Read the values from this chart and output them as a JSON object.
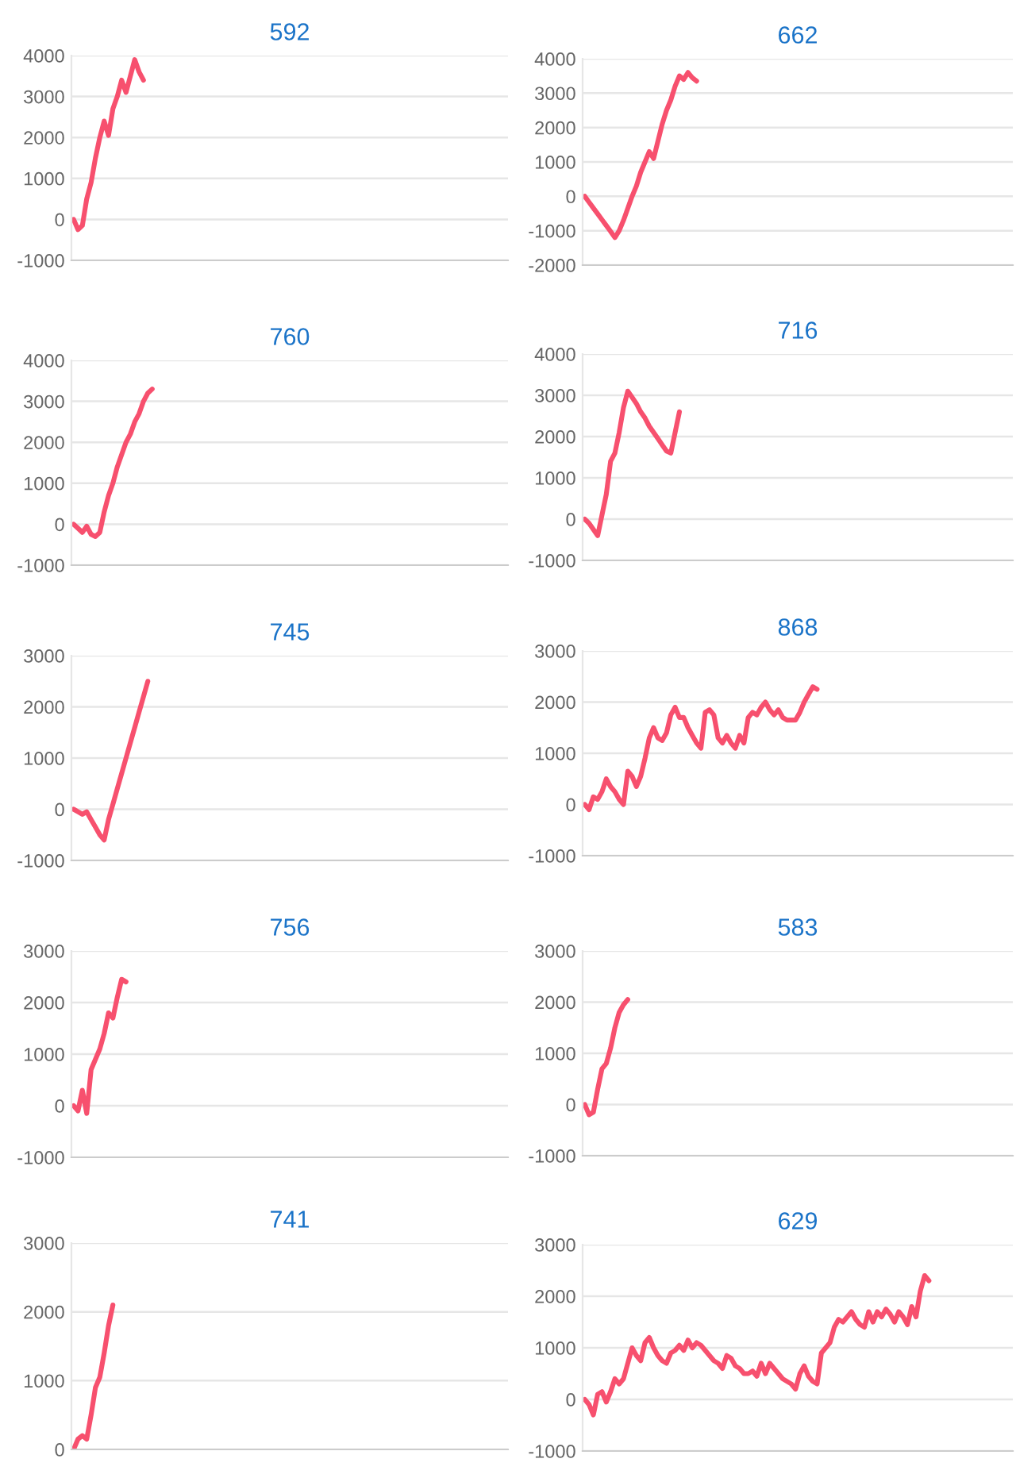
{
  "chart_data": [
    {
      "type": "line",
      "title": "592",
      "categories": [
        null,
        null,
        null,
        null,
        null,
        null,
        null,
        null,
        null,
        null,
        null,
        null,
        null,
        null,
        null,
        null,
        null,
        null,
        null,
        null,
        null,
        null,
        null,
        null,
        null,
        null,
        null,
        null,
        null,
        null,
        null,
        null,
        null,
        null,
        null,
        null,
        null,
        null,
        null,
        null,
        null,
        null,
        null,
        null,
        null,
        null,
        null,
        null,
        null,
        null,
        null,
        null,
        null,
        null,
        null,
        null,
        null,
        null,
        null,
        null,
        null,
        null,
        null,
        null,
        null,
        null,
        null,
        null,
        null,
        null,
        null,
        null,
        null,
        null,
        null,
        null,
        null,
        null,
        null,
        null,
        null,
        null,
        null,
        null,
        null,
        null,
        null,
        null,
        null,
        null,
        null,
        null,
        null,
        null,
        null,
        null,
        null,
        null,
        null,
        null
      ],
      "series": [
        {
          "color": "#f7506e",
          "values": [
            0,
            -250,
            -150,
            500,
            900,
            1500,
            2000,
            2400,
            2050,
            2700,
            3000,
            3400,
            3100,
            3500,
            3900,
            3600,
            3400,
            null,
            null,
            null,
            null,
            null,
            null,
            null,
            null,
            null,
            null,
            null,
            null,
            null,
            null,
            null,
            null,
            null,
            null,
            null,
            null,
            null,
            null,
            null,
            null,
            null,
            null,
            null,
            null,
            null,
            null,
            null,
            null,
            null,
            null,
            null,
            null,
            null,
            null,
            null,
            null,
            null,
            null,
            null,
            null,
            null,
            null,
            null,
            null,
            null,
            null,
            null,
            null,
            null,
            null,
            null,
            null,
            null,
            null,
            null,
            null,
            null,
            null,
            null,
            null,
            null,
            null,
            null,
            null,
            null,
            null,
            null,
            null,
            null,
            null,
            null,
            null,
            null,
            null,
            null,
            null,
            null,
            null,
            null
          ]
        }
      ],
      "ylim": [
        -1000,
        4000
      ],
      "yticks": [
        -1000,
        0,
        1000,
        2000,
        3000,
        4000
      ],
      "grid": "y",
      "tick_labels": "y",
      "marker": "none",
      "line_style": "solid"
    },
    {
      "type": "line",
      "title": "662",
      "categories": [
        null,
        null,
        null,
        null,
        null,
        null,
        null,
        null,
        null,
        null,
        null,
        null,
        null,
        null,
        null,
        null,
        null,
        null,
        null,
        null,
        null,
        null,
        null,
        null,
        null,
        null,
        null,
        null,
        null,
        null,
        null,
        null,
        null,
        null,
        null,
        null,
        null,
        null,
        null,
        null,
        null,
        null,
        null,
        null,
        null,
        null,
        null,
        null,
        null,
        null,
        null,
        null,
        null,
        null,
        null,
        null,
        null,
        null,
        null,
        null,
        null,
        null,
        null,
        null,
        null,
        null,
        null,
        null,
        null,
        null,
        null,
        null,
        null,
        null,
        null,
        null,
        null,
        null,
        null,
        null,
        null,
        null,
        null,
        null,
        null,
        null,
        null,
        null,
        null,
        null,
        null,
        null,
        null,
        null,
        null,
        null,
        null,
        null,
        null,
        null
      ],
      "series": [
        {
          "color": "#f7506e",
          "values": [
            0,
            -170,
            -340,
            -510,
            -680,
            -850,
            -1020,
            -1200,
            -1000,
            -700,
            -350,
            0,
            300,
            700,
            1000,
            1300,
            1100,
            1600,
            2100,
            2500,
            2800,
            3200,
            3500,
            3400,
            3600,
            3450,
            3350,
            null,
            null,
            null,
            null,
            null,
            null,
            null,
            null,
            null,
            null,
            null,
            null,
            null,
            null,
            null,
            null,
            null,
            null,
            null,
            null,
            null,
            null,
            null,
            null,
            null,
            null,
            null,
            null,
            null,
            null,
            null,
            null,
            null,
            null,
            null,
            null,
            null,
            null,
            null,
            null,
            null,
            null,
            null,
            null,
            null,
            null,
            null,
            null,
            null,
            null,
            null,
            null,
            null,
            null,
            null,
            null,
            null,
            null,
            null,
            null,
            null,
            null,
            null,
            null,
            null,
            null,
            null,
            null,
            null,
            null,
            null,
            null,
            null
          ]
        }
      ],
      "ylim": [
        -2000,
        4000
      ],
      "yticks": [
        -2000,
        -1000,
        0,
        1000,
        2000,
        3000,
        4000
      ],
      "grid": "y",
      "tick_labels": "y",
      "marker": "none",
      "line_style": "solid"
    },
    {
      "type": "line",
      "title": "760",
      "categories": [
        null,
        null,
        null,
        null,
        null,
        null,
        null,
        null,
        null,
        null,
        null,
        null,
        null,
        null,
        null,
        null,
        null,
        null,
        null,
        null,
        null,
        null,
        null,
        null,
        null,
        null,
        null,
        null,
        null,
        null,
        null,
        null,
        null,
        null,
        null,
        null,
        null,
        null,
        null,
        null,
        null,
        null,
        null,
        null,
        null,
        null,
        null,
        null,
        null,
        null,
        null,
        null,
        null,
        null,
        null,
        null,
        null,
        null,
        null,
        null,
        null,
        null,
        null,
        null,
        null,
        null,
        null,
        null,
        null,
        null,
        null,
        null,
        null,
        null,
        null,
        null,
        null,
        null,
        null,
        null,
        null,
        null,
        null,
        null,
        null,
        null,
        null,
        null,
        null,
        null,
        null,
        null,
        null,
        null,
        null,
        null,
        null,
        null,
        null,
        null
      ],
      "series": [
        {
          "color": "#f7506e",
          "values": [
            0,
            -100,
            -200,
            -50,
            -250,
            -300,
            -200,
            300,
            700,
            1000,
            1400,
            1700,
            2000,
            2200,
            2500,
            2700,
            3000,
            3200,
            3300,
            null,
            null,
            null,
            null,
            null,
            null,
            null,
            null,
            null,
            null,
            null,
            null,
            null,
            null,
            null,
            null,
            null,
            null,
            null,
            null,
            null,
            null,
            null,
            null,
            null,
            null,
            null,
            null,
            null,
            null,
            null,
            null,
            null,
            null,
            null,
            null,
            null,
            null,
            null,
            null,
            null,
            null,
            null,
            null,
            null,
            null,
            null,
            null,
            null,
            null,
            null,
            null,
            null,
            null,
            null,
            null,
            null,
            null,
            null,
            null,
            null,
            null,
            null,
            null,
            null,
            null,
            null,
            null,
            null,
            null,
            null,
            null,
            null,
            null,
            null,
            null,
            null,
            null,
            null,
            null,
            null
          ]
        }
      ],
      "ylim": [
        -1000,
        4000
      ],
      "yticks": [
        -1000,
        0,
        1000,
        2000,
        3000,
        4000
      ],
      "grid": "y",
      "tick_labels": "y",
      "marker": "none",
      "line_style": "solid"
    },
    {
      "type": "line",
      "title": "716",
      "categories": [
        null,
        null,
        null,
        null,
        null,
        null,
        null,
        null,
        null,
        null,
        null,
        null,
        null,
        null,
        null,
        null,
        null,
        null,
        null,
        null,
        null,
        null,
        null,
        null,
        null,
        null,
        null,
        null,
        null,
        null,
        null,
        null,
        null,
        null,
        null,
        null,
        null,
        null,
        null,
        null,
        null,
        null,
        null,
        null,
        null,
        null,
        null,
        null,
        null,
        null,
        null,
        null,
        null,
        null,
        null,
        null,
        null,
        null,
        null,
        null,
        null,
        null,
        null,
        null,
        null,
        null,
        null,
        null,
        null,
        null,
        null,
        null,
        null,
        null,
        null,
        null,
        null,
        null,
        null,
        null,
        null,
        null,
        null,
        null,
        null,
        null,
        null,
        null,
        null,
        null,
        null,
        null,
        null,
        null,
        null,
        null,
        null,
        null,
        null,
        null
      ],
      "series": [
        {
          "color": "#f7506e",
          "values": [
            0,
            -100,
            -250,
            -400,
            100,
            600,
            1400,
            1600,
            2100,
            2700,
            3100,
            2950,
            2800,
            2600,
            2450,
            2250,
            2100,
            1950,
            1800,
            1650,
            1600,
            2100,
            2600,
            null,
            null,
            null,
            null,
            null,
            null,
            null,
            null,
            null,
            null,
            null,
            null,
            null,
            null,
            null,
            null,
            null,
            null,
            null,
            null,
            null,
            null,
            null,
            null,
            null,
            null,
            null,
            null,
            null,
            null,
            null,
            null,
            null,
            null,
            null,
            null,
            null,
            null,
            null,
            null,
            null,
            null,
            null,
            null,
            null,
            null,
            null,
            null,
            null,
            null,
            null,
            null,
            null,
            null,
            null,
            null,
            null,
            null,
            null,
            null,
            null,
            null,
            null,
            null,
            null,
            null,
            null,
            null,
            null,
            null,
            null,
            null,
            null,
            null,
            null,
            null,
            null
          ]
        }
      ],
      "ylim": [
        -1000,
        4000
      ],
      "yticks": [
        -1000,
        0,
        1000,
        2000,
        3000,
        4000
      ],
      "grid": "y",
      "tick_labels": "y",
      "marker": "none",
      "line_style": "solid"
    },
    {
      "type": "line",
      "title": "745",
      "categories": [
        null,
        null,
        null,
        null,
        null,
        null,
        null,
        null,
        null,
        null,
        null,
        null,
        null,
        null,
        null,
        null,
        null,
        null,
        null,
        null,
        null,
        null,
        null,
        null,
        null,
        null,
        null,
        null,
        null,
        null,
        null,
        null,
        null,
        null,
        null,
        null,
        null,
        null,
        null,
        null,
        null,
        null,
        null,
        null,
        null,
        null,
        null,
        null,
        null,
        null,
        null,
        null,
        null,
        null,
        null,
        null,
        null,
        null,
        null,
        null,
        null,
        null,
        null,
        null,
        null,
        null,
        null,
        null,
        null,
        null,
        null,
        null,
        null,
        null,
        null,
        null,
        null,
        null,
        null,
        null,
        null,
        null,
        null,
        null,
        null,
        null,
        null,
        null,
        null,
        null,
        null,
        null,
        null,
        null,
        null,
        null,
        null,
        null,
        null,
        null
      ],
      "series": [
        {
          "color": "#f7506e",
          "values": [
            0,
            -50,
            -100,
            -50,
            -200,
            -350,
            -500,
            -600,
            -200,
            100,
            400,
            700,
            1000,
            1300,
            1600,
            1900,
            2200,
            2500,
            null,
            null,
            null,
            null,
            null,
            null,
            null,
            null,
            null,
            null,
            null,
            null,
            null,
            null,
            null,
            null,
            null,
            null,
            null,
            null,
            null,
            null,
            null,
            null,
            null,
            null,
            null,
            null,
            null,
            null,
            null,
            null,
            null,
            null,
            null,
            null,
            null,
            null,
            null,
            null,
            null,
            null,
            null,
            null,
            null,
            null,
            null,
            null,
            null,
            null,
            null,
            null,
            null,
            null,
            null,
            null,
            null,
            null,
            null,
            null,
            null,
            null,
            null,
            null,
            null,
            null,
            null,
            null,
            null,
            null,
            null,
            null,
            null,
            null,
            null,
            null,
            null,
            null,
            null,
            null,
            null,
            null
          ]
        }
      ],
      "ylim": [
        -1000,
        3000
      ],
      "yticks": [
        -1000,
        0,
        1000,
        2000,
        3000
      ],
      "grid": "y",
      "tick_labels": "y",
      "marker": "none",
      "line_style": "solid"
    },
    {
      "type": "line",
      "title": "868",
      "categories": [
        null,
        null,
        null,
        null,
        null,
        null,
        null,
        null,
        null,
        null,
        null,
        null,
        null,
        null,
        null,
        null,
        null,
        null,
        null,
        null,
        null,
        null,
        null,
        null,
        null,
        null,
        null,
        null,
        null,
        null,
        null,
        null,
        null,
        null,
        null,
        null,
        null,
        null,
        null,
        null,
        null,
        null,
        null,
        null,
        null,
        null,
        null,
        null,
        null,
        null,
        null,
        null,
        null,
        null,
        null,
        null,
        null,
        null,
        null,
        null,
        null,
        null,
        null,
        null,
        null,
        null,
        null,
        null,
        null,
        null,
        null,
        null,
        null,
        null,
        null,
        null,
        null,
        null,
        null,
        null,
        null,
        null,
        null,
        null,
        null,
        null,
        null,
        null,
        null,
        null,
        null,
        null,
        null,
        null,
        null,
        null,
        null,
        null,
        null,
        null
      ],
      "series": [
        {
          "color": "#f7506e",
          "values": [
            0,
            -100,
            150,
            100,
            250,
            500,
            350,
            250,
            100,
            0,
            650,
            550,
            350,
            550,
            900,
            1300,
            1500,
            1300,
            1250,
            1400,
            1750,
            1900,
            1700,
            1700,
            1500,
            1350,
            1200,
            1100,
            1800,
            1850,
            1750,
            1300,
            1200,
            1350,
            1200,
            1100,
            1350,
            1200,
            1700,
            1800,
            1750,
            1900,
            2000,
            1850,
            1750,
            1850,
            1700,
            1650,
            1650,
            1650,
            1800,
            2000,
            2150,
            2300,
            2250,
            null,
            null,
            null,
            null,
            null,
            null,
            null,
            null,
            null,
            null,
            null,
            null,
            null,
            null,
            null,
            null,
            null,
            null,
            null,
            null,
            null,
            null,
            null,
            null,
            null,
            null,
            null,
            null,
            null,
            null,
            null,
            null,
            null,
            null,
            null,
            null,
            null,
            null,
            null,
            null,
            null,
            null,
            null,
            null,
            null
          ]
        }
      ],
      "ylim": [
        -1000,
        3000
      ],
      "yticks": [
        -1000,
        0,
        1000,
        2000,
        3000
      ],
      "grid": "y",
      "tick_labels": "y",
      "marker": "none",
      "line_style": "solid"
    },
    {
      "type": "line",
      "title": "756",
      "categories": [
        null,
        null,
        null,
        null,
        null,
        null,
        null,
        null,
        null,
        null,
        null,
        null,
        null,
        null,
        null,
        null,
        null,
        null,
        null,
        null,
        null,
        null,
        null,
        null,
        null,
        null,
        null,
        null,
        null,
        null,
        null,
        null,
        null,
        null,
        null,
        null,
        null,
        null,
        null,
        null,
        null,
        null,
        null,
        null,
        null,
        null,
        null,
        null,
        null,
        null,
        null,
        null,
        null,
        null,
        null,
        null,
        null,
        null,
        null,
        null,
        null,
        null,
        null,
        null,
        null,
        null,
        null,
        null,
        null,
        null,
        null,
        null,
        null,
        null,
        null,
        null,
        null,
        null,
        null,
        null,
        null,
        null,
        null,
        null,
        null,
        null,
        null,
        null,
        null,
        null,
        null,
        null,
        null,
        null,
        null,
        null,
        null,
        null,
        null,
        null
      ],
      "series": [
        {
          "color": "#f7506e",
          "values": [
            0,
            -100,
            300,
            -150,
            700,
            900,
            1100,
            1400,
            1800,
            1700,
            2100,
            2450,
            2400,
            null,
            null,
            null,
            null,
            null,
            null,
            null,
            null,
            null,
            null,
            null,
            null,
            null,
            null,
            null,
            null,
            null,
            null,
            null,
            null,
            null,
            null,
            null,
            null,
            null,
            null,
            null,
            null,
            null,
            null,
            null,
            null,
            null,
            null,
            null,
            null,
            null,
            null,
            null,
            null,
            null,
            null,
            null,
            null,
            null,
            null,
            null,
            null,
            null,
            null,
            null,
            null,
            null,
            null,
            null,
            null,
            null,
            null,
            null,
            null,
            null,
            null,
            null,
            null,
            null,
            null,
            null,
            null,
            null,
            null,
            null,
            null,
            null,
            null,
            null,
            null,
            null,
            null,
            null,
            null,
            null,
            null,
            null,
            null,
            null,
            null,
            null
          ]
        }
      ],
      "ylim": [
        -1000,
        3000
      ],
      "yticks": [
        -1000,
        0,
        1000,
        2000,
        3000
      ],
      "grid": "y",
      "tick_labels": "y",
      "marker": "none",
      "line_style": "solid"
    },
    {
      "type": "line",
      "title": "583",
      "categories": [
        null,
        null,
        null,
        null,
        null,
        null,
        null,
        null,
        null,
        null,
        null,
        null,
        null,
        null,
        null,
        null,
        null,
        null,
        null,
        null,
        null,
        null,
        null,
        null,
        null,
        null,
        null,
        null,
        null,
        null,
        null,
        null,
        null,
        null,
        null,
        null,
        null,
        null,
        null,
        null,
        null,
        null,
        null,
        null,
        null,
        null,
        null,
        null,
        null,
        null,
        null,
        null,
        null,
        null,
        null,
        null,
        null,
        null,
        null,
        null,
        null,
        null,
        null,
        null,
        null,
        null,
        null,
        null,
        null,
        null,
        null,
        null,
        null,
        null,
        null,
        null,
        null,
        null,
        null,
        null,
        null,
        null,
        null,
        null,
        null,
        null,
        null,
        null,
        null,
        null,
        null,
        null,
        null,
        null,
        null,
        null,
        null,
        null,
        null,
        null
      ],
      "series": [
        {
          "color": "#f7506e",
          "values": [
            0,
            -200,
            -150,
            300,
            700,
            800,
            1100,
            1500,
            1800,
            1950,
            2050,
            null,
            null,
            null,
            null,
            null,
            null,
            null,
            null,
            null,
            null,
            null,
            null,
            null,
            null,
            null,
            null,
            null,
            null,
            null,
            null,
            null,
            null,
            null,
            null,
            null,
            null,
            null,
            null,
            null,
            null,
            null,
            null,
            null,
            null,
            null,
            null,
            null,
            null,
            null,
            null,
            null,
            null,
            null,
            null,
            null,
            null,
            null,
            null,
            null,
            null,
            null,
            null,
            null,
            null,
            null,
            null,
            null,
            null,
            null,
            null,
            null,
            null,
            null,
            null,
            null,
            null,
            null,
            null,
            null,
            null,
            null,
            null,
            null,
            null,
            null,
            null,
            null,
            null,
            null,
            null,
            null,
            null,
            null,
            null,
            null,
            null,
            null,
            null,
            null
          ]
        }
      ],
      "ylim": [
        -1000,
        3000
      ],
      "yticks": [
        -1000,
        0,
        1000,
        2000,
        3000
      ],
      "grid": "y",
      "tick_labels": "y",
      "marker": "none",
      "line_style": "solid"
    },
    {
      "type": "line",
      "title": "741",
      "categories": [
        null,
        null,
        null,
        null,
        null,
        null,
        null,
        null,
        null,
        null,
        null,
        null,
        null,
        null,
        null,
        null,
        null,
        null,
        null,
        null,
        null,
        null,
        null,
        null,
        null,
        null,
        null,
        null,
        null,
        null,
        null,
        null,
        null,
        null,
        null,
        null,
        null,
        null,
        null,
        null,
        null,
        null,
        null,
        null,
        null,
        null,
        null,
        null,
        null,
        null,
        null,
        null,
        null,
        null,
        null,
        null,
        null,
        null,
        null,
        null,
        null,
        null,
        null,
        null,
        null,
        null,
        null,
        null,
        null,
        null,
        null,
        null,
        null,
        null,
        null,
        null,
        null,
        null,
        null,
        null,
        null,
        null,
        null,
        null,
        null,
        null,
        null,
        null,
        null,
        null,
        null,
        null,
        null,
        null,
        null,
        null,
        null,
        null,
        null,
        null
      ],
      "series": [
        {
          "color": "#f7506e",
          "values": [
            0,
            150,
            200,
            150,
            500,
            900,
            1050,
            1400,
            1800,
            2100,
            null,
            null,
            null,
            null,
            null,
            null,
            null,
            null,
            null,
            null,
            null,
            null,
            null,
            null,
            null,
            null,
            null,
            null,
            null,
            null,
            null,
            null,
            null,
            null,
            null,
            null,
            null,
            null,
            null,
            null,
            null,
            null,
            null,
            null,
            null,
            null,
            null,
            null,
            null,
            null,
            null,
            null,
            null,
            null,
            null,
            null,
            null,
            null,
            null,
            null,
            null,
            null,
            null,
            null,
            null,
            null,
            null,
            null,
            null,
            null,
            null,
            null,
            null,
            null,
            null,
            null,
            null,
            null,
            null,
            null,
            null,
            null,
            null,
            null,
            null,
            null,
            null,
            null,
            null,
            null,
            null,
            null,
            null,
            null,
            null,
            null,
            null,
            null,
            null,
            null
          ]
        }
      ],
      "ylim": [
        0,
        3000
      ],
      "yticks": [
        0,
        1000,
        2000,
        3000
      ],
      "grid": "y",
      "tick_labels": "y",
      "marker": "none",
      "line_style": "solid"
    },
    {
      "type": "line",
      "title": "629",
      "categories": [
        null,
        null,
        null,
        null,
        null,
        null,
        null,
        null,
        null,
        null,
        null,
        null,
        null,
        null,
        null,
        null,
        null,
        null,
        null,
        null,
        null,
        null,
        null,
        null,
        null,
        null,
        null,
        null,
        null,
        null,
        null,
        null,
        null,
        null,
        null,
        null,
        null,
        null,
        null,
        null,
        null,
        null,
        null,
        null,
        null,
        null,
        null,
        null,
        null,
        null,
        null,
        null,
        null,
        null,
        null,
        null,
        null,
        null,
        null,
        null,
        null,
        null,
        null,
        null,
        null,
        null,
        null,
        null,
        null,
        null,
        null,
        null,
        null,
        null,
        null,
        null,
        null,
        null,
        null,
        null,
        null,
        null,
        null,
        null,
        null,
        null,
        null,
        null,
        null,
        null,
        null,
        null,
        null,
        null,
        null,
        null,
        null,
        null,
        null,
        null
      ],
      "series": [
        {
          "color": "#f7506e",
          "values": [
            0,
            -100,
            -300,
            100,
            150,
            -50,
            150,
            400,
            300,
            400,
            700,
            1000,
            850,
            750,
            1100,
            1200,
            1000,
            850,
            750,
            700,
            900,
            950,
            1050,
            950,
            1150,
            1000,
            1100,
            1050,
            950,
            850,
            750,
            700,
            600,
            850,
            800,
            650,
            600,
            500,
            500,
            550,
            450,
            700,
            500,
            700,
            600,
            500,
            400,
            350,
            300,
            200,
            500,
            650,
            450,
            350,
            300,
            900,
            1000,
            1100,
            1400,
            1550,
            1500,
            1600,
            1700,
            1550,
            1450,
            1400,
            1700,
            1500,
            1700,
            1600,
            1750,
            1650,
            1500,
            1700,
            1600,
            1450,
            1800,
            1600,
            2100,
            2400,
            2300,
            null,
            null,
            null,
            null,
            null,
            null,
            null,
            null,
            null,
            null,
            null,
            null,
            null,
            null,
            null,
            null,
            null,
            null,
            null
          ]
        }
      ],
      "ylim": [
        -1000,
        3000
      ],
      "yticks": [
        -1000,
        0,
        1000,
        2000,
        3000
      ],
      "grid": "y",
      "tick_labels": "y",
      "marker": "none",
      "line_style": "solid"
    }
  ]
}
